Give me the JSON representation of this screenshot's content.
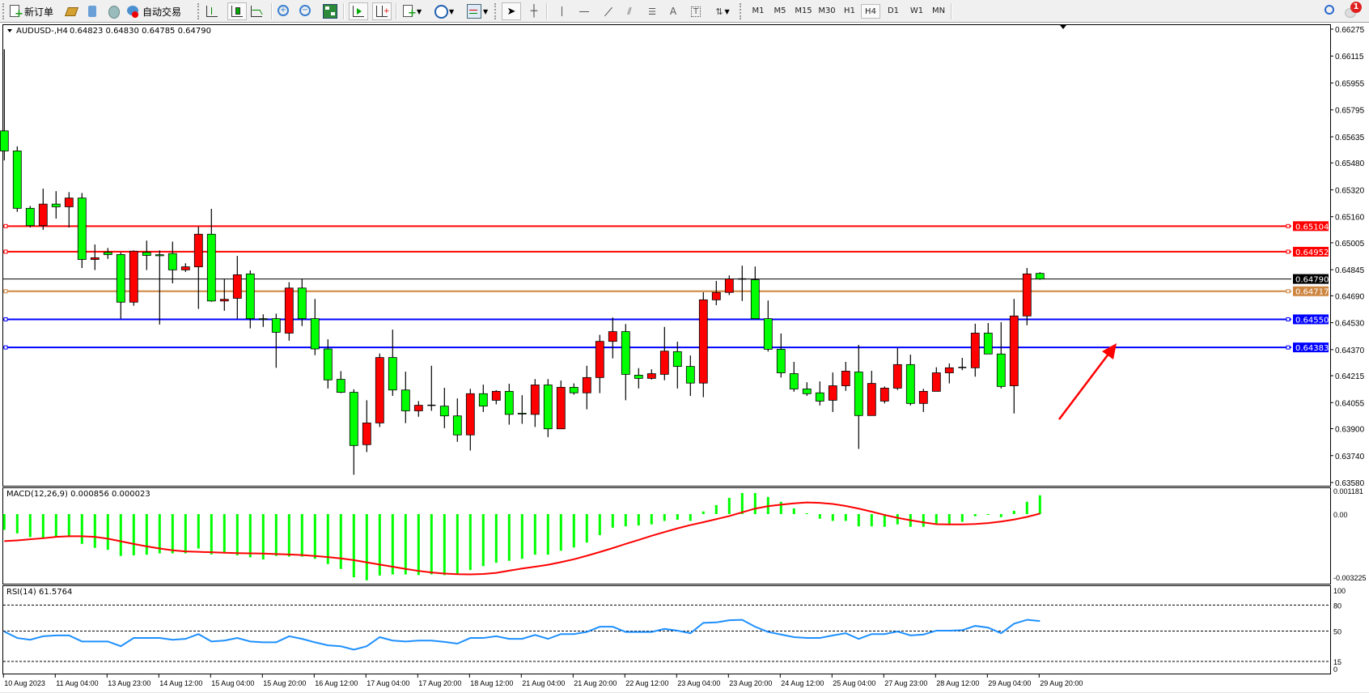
{
  "toolbar": {
    "new_order_label": "新订单",
    "auto_trading_label": "自动交易",
    "timeframes": [
      "M1",
      "M5",
      "M15",
      "M30",
      "H1",
      "H4",
      "D1",
      "W1",
      "MN"
    ],
    "active_timeframe": "H4",
    "notification_count": "1"
  },
  "chart": {
    "symbol_info": "AUDUSD-,H4",
    "ohlc_header": "0.64823 0.64830 0.64785 0.64790"
  },
  "chart_data": {
    "type": "candlestick",
    "symbol": "AUDUSD-",
    "timeframe": "H4",
    "colors": {
      "bull": "#ff0000",
      "bear": "#00ff00",
      "doji": "#000000"
    },
    "candle_fields": [
      "open",
      "high",
      "low",
      "close"
    ],
    "candles": [
      [
        0.6567,
        0.66155,
        0.65495,
        0.65551
      ],
      [
        0.65551,
        0.65578,
        0.65189,
        0.6521
      ],
      [
        0.6521,
        0.65224,
        0.65096,
        0.65107
      ],
      [
        0.65107,
        0.65327,
        0.65082,
        0.65235
      ],
      [
        0.65235,
        0.65312,
        0.65149,
        0.65219
      ],
      [
        0.65219,
        0.65306,
        0.65096,
        0.65271
      ],
      [
        0.65271,
        0.65301,
        0.64855,
        0.64906
      ],
      [
        0.64906,
        0.64995,
        0.64843,
        0.64916
      ],
      [
        0.64948,
        0.64974,
        0.64909,
        0.64935
      ],
      [
        0.64935,
        0.64948,
        0.64554,
        0.64652
      ],
      [
        0.64652,
        0.6496,
        0.64631,
        0.64955
      ],
      [
        0.64948,
        0.65018,
        0.64843,
        0.6493
      ],
      [
        0.64934,
        0.6496,
        0.64519,
        0.64928
      ],
      [
        0.64941,
        0.65012,
        0.64764,
        0.64844
      ],
      [
        0.64844,
        0.64883,
        0.64832,
        0.64862
      ],
      [
        0.64862,
        0.651,
        0.64612,
        0.65056
      ],
      [
        0.65056,
        0.65207,
        0.64654,
        0.64659
      ],
      [
        0.64659,
        0.6479,
        0.64601,
        0.64669
      ],
      [
        0.64675,
        0.64927,
        0.64554,
        0.64815
      ],
      [
        0.6482,
        0.64841,
        0.64496,
        0.64554
      ],
      [
        0.64554,
        0.6458,
        0.64505,
        0.6455
      ],
      [
        0.64554,
        0.64584,
        0.64262,
        0.64473
      ],
      [
        0.64468,
        0.64771,
        0.64423,
        0.64736
      ],
      [
        0.64736,
        0.64792,
        0.6451,
        0.64554
      ],
      [
        0.64554,
        0.64671,
        0.64337,
        0.64374
      ],
      [
        0.64374,
        0.64431,
        0.64139,
        0.6419
      ],
      [
        0.64193,
        0.64242,
        0.64111,
        0.64116
      ],
      [
        0.64116,
        0.64134,
        0.63626,
        0.638
      ],
      [
        0.63805,
        0.64069,
        0.63761,
        0.63934
      ],
      [
        0.63934,
        0.64347,
        0.6391,
        0.64323
      ],
      [
        0.64323,
        0.64489,
        0.64095,
        0.6413
      ],
      [
        0.6413,
        0.64239,
        0.63933,
        0.64006
      ],
      [
        0.64006,
        0.64064,
        0.63971,
        0.64039
      ],
      [
        0.64039,
        0.64274,
        0.64006,
        0.64036
      ],
      [
        0.64034,
        0.64143,
        0.63903,
        0.63976
      ],
      [
        0.63976,
        0.6408,
        0.63822,
        0.63863
      ],
      [
        0.63863,
        0.64137,
        0.6377,
        0.64108
      ],
      [
        0.64108,
        0.64162,
        0.63999,
        0.64034
      ],
      [
        0.64069,
        0.64129,
        0.64045,
        0.64122
      ],
      [
        0.64122,
        0.64167,
        0.63924,
        0.63985
      ],
      [
        0.63992,
        0.64099,
        0.63929,
        0.63988
      ],
      [
        0.63985,
        0.64195,
        0.6391,
        0.6416
      ],
      [
        0.6416,
        0.64195,
        0.6385,
        0.63899
      ],
      [
        0.63899,
        0.64186,
        0.63899,
        0.64146
      ],
      [
        0.64146,
        0.64169,
        0.64102,
        0.64113
      ],
      [
        0.64113,
        0.64274,
        0.64015,
        0.64204
      ],
      [
        0.64204,
        0.64458,
        0.64111,
        0.64419
      ],
      [
        0.64419,
        0.64561,
        0.64318,
        0.64477
      ],
      [
        0.64477,
        0.64522,
        0.64069,
        0.64223
      ],
      [
        0.64218,
        0.6426,
        0.64139,
        0.64199
      ],
      [
        0.64199,
        0.64253,
        0.64192,
        0.64227
      ],
      [
        0.64223,
        0.64505,
        0.64188,
        0.64361
      ],
      [
        0.64358,
        0.64417,
        0.64139,
        0.6427
      ],
      [
        0.6427,
        0.64335,
        0.64095,
        0.64171
      ],
      [
        0.64171,
        0.64711,
        0.64087,
        0.64666
      ],
      [
        0.64666,
        0.64778,
        0.64634,
        0.6471
      ],
      [
        0.6471,
        0.64811,
        0.64694,
        0.6479
      ],
      [
        0.64787,
        0.64869,
        0.64659,
        0.6479
      ],
      [
        0.64785,
        0.64864,
        0.64554,
        0.64554
      ],
      [
        0.64554,
        0.64662,
        0.64358,
        0.64372
      ],
      [
        0.64372,
        0.64466,
        0.64204,
        0.64232
      ],
      [
        0.64227,
        0.64297,
        0.6412,
        0.64136
      ],
      [
        0.64136,
        0.64176,
        0.64095,
        0.64108
      ],
      [
        0.64113,
        0.64181,
        0.64038,
        0.64064
      ],
      [
        0.64069,
        0.64234,
        0.63999,
        0.64155
      ],
      [
        0.64155,
        0.64297,
        0.64125,
        0.64242
      ],
      [
        0.64237,
        0.64398,
        0.6378,
        0.63978
      ],
      [
        0.63978,
        0.64244,
        0.63978,
        0.64169
      ],
      [
        0.64064,
        0.64151,
        0.6405,
        0.64141
      ],
      [
        0.64141,
        0.64379,
        0.6413,
        0.64281
      ],
      [
        0.64281,
        0.6434,
        0.64038,
        0.6405
      ],
      [
        0.6405,
        0.64137,
        0.63999,
        0.64122
      ],
      [
        0.64122,
        0.64265,
        0.64122,
        0.64232
      ],
      [
        0.64232,
        0.64288,
        0.64169,
        0.64262
      ],
      [
        0.64264,
        0.64321,
        0.64248,
        0.64264
      ],
      [
        0.64262,
        0.64524,
        0.64209,
        0.64468
      ],
      [
        0.64468,
        0.64528,
        0.64344,
        0.64344
      ],
      [
        0.64344,
        0.64533,
        0.64139,
        0.64151
      ],
      [
        0.64155,
        0.64671,
        0.6399,
        0.6457
      ],
      [
        0.6457,
        0.64855,
        0.64515,
        0.6482
      ],
      [
        0.64823,
        0.6483,
        0.64785,
        0.6479
      ]
    ],
    "price_range": [
      0.6358,
      0.66275
    ],
    "price_ticks": [
      "0.66275",
      "0.66115",
      "0.65955",
      "0.65795",
      "0.65635",
      "0.65480",
      "0.65320",
      "0.65160",
      "0.65005",
      "0.64845",
      "0.64690",
      "0.64530",
      "0.64370",
      "0.64215",
      "0.64055",
      "0.63900",
      "0.63740",
      "0.63580"
    ],
    "horizontal_lines": [
      {
        "price": "0.65104",
        "color": "#ff0000"
      },
      {
        "price": "0.64952",
        "color": "#ff0000"
      },
      {
        "price": "0.64717",
        "color": "#cd853f"
      },
      {
        "price": "0.64550",
        "color": "#0000ff"
      },
      {
        "price": "0.64383",
        "color": "#0000ff"
      }
    ],
    "bid_line": {
      "price": "0.64790",
      "color": "#000000"
    },
    "x_tick_labels": [
      "10 Aug 2023",
      "11 Aug 04:00",
      "13 Aug 23:00",
      "14 Aug 12:00",
      "15 Aug 04:00",
      "15 Aug 20:00",
      "16 Aug 12:00",
      "17 Aug 04:00",
      "17 Aug 20:00",
      "18 Aug 12:00",
      "21 Aug 04:00",
      "21 Aug 20:00",
      "22 Aug 12:00",
      "23 Aug 04:00",
      "23 Aug 20:00",
      "24 Aug 12:00",
      "25 Aug 04:00",
      "27 Aug 23:00",
      "28 Aug 12:00",
      "29 Aug 04:00",
      "29 Aug 20:00"
    ],
    "annotation_arrow": {
      "color": "#ff0000",
      "direction": "up-right"
    },
    "macd": {
      "header": "MACD(12,26,9) 0.000856 0.000023",
      "range": [
        -0.003225,
        0.001181
      ],
      "axis_ticks": [
        "0.001181",
        "0.00",
        "-0.003225"
      ],
      "histogram_color": "#00ff00",
      "signal_color": "#ff0000",
      "histogram": [
        -0.00072,
        -0.00088,
        -0.00105,
        -0.00111,
        -0.00105,
        -0.00105,
        -0.00136,
        -0.00154,
        -0.00163,
        -0.00191,
        -0.00188,
        -0.00185,
        -0.00179,
        -0.00179,
        -0.00179,
        -0.00157,
        -0.00184,
        -0.00173,
        -0.00188,
        -0.00197,
        -0.00207,
        -0.00191,
        -0.00194,
        -0.00194,
        -0.00204,
        -0.00228,
        -0.0025,
        -0.00288,
        -0.00302,
        -0.0028,
        -0.00275,
        -0.00275,
        -0.00278,
        -0.00275,
        -0.00278,
        -0.00273,
        -0.00255,
        -0.00237,
        -0.00222,
        -0.00213,
        -0.00204,
        -0.00185,
        -0.00185,
        -0.00167,
        -0.00152,
        -0.0013,
        -0.00096,
        -0.00062,
        -0.00056,
        -0.00052,
        -0.00047,
        -0.00031,
        -0.00026,
        -0.00031,
        0.00012,
        0.00041,
        0.00074,
        0.00096,
        0.00096,
        0.00078,
        0.00056,
        0.00026,
        4e-05,
        -0.00021,
        -0.00031,
        -0.00031,
        -0.00056,
        -0.00056,
        -0.00058,
        -0.00047,
        -0.00058,
        -0.00058,
        -0.00046,
        -0.00046,
        -0.00035,
        -0.0001,
        -2e-05,
        -0.00014,
        0.00015,
        0.00056,
        0.000856
      ],
      "signal": [
        -0.00123,
        -0.0012,
        -0.00115,
        -0.0011,
        -0.00104,
        -0.00101,
        -0.00101,
        -0.00104,
        -0.00112,
        -0.00124,
        -0.00136,
        -0.00147,
        -0.00157,
        -0.00165,
        -0.0017,
        -0.00172,
        -0.00174,
        -0.00176,
        -0.00178,
        -0.00179,
        -0.0018,
        -0.00182,
        -0.00184,
        -0.00187,
        -0.00191,
        -0.00196,
        -0.00202,
        -0.0021,
        -0.0022,
        -0.0023,
        -0.0024,
        -0.0025,
        -0.00259,
        -0.00266,
        -0.00271,
        -0.00274,
        -0.00275,
        -0.00273,
        -0.00268,
        -0.00258,
        -0.00248,
        -0.0024,
        -0.00231,
        -0.00219,
        -0.00206,
        -0.0019,
        -0.00173,
        -0.00155,
        -0.00136,
        -0.00118,
        -0.00099,
        -0.00082,
        -0.00065,
        -0.0005,
        -0.00037,
        -0.00023,
        -9e-05,
        8e-05,
        0.00025,
        0.00036,
        0.00043,
        0.00049,
        0.00053,
        0.00051,
        0.00046,
        0.00037,
        0.00025,
        0.00011,
        -4e-05,
        -0.00017,
        -0.00028,
        -0.00038,
        -0.00046,
        -0.00047,
        -0.00047,
        -0.00045,
        -0.00041,
        -0.00034,
        -0.00025,
        -0.00013,
        2.3e-05
      ]
    },
    "rsi": {
      "header": "RSI(14) 61.5764",
      "range": [
        0,
        100
      ],
      "levels": [
        80,
        50,
        15
      ],
      "axis_ticks": [
        "100",
        "80",
        "50",
        "15",
        "0"
      ],
      "color": "#1e90ff",
      "values": [
        49.4,
        42,
        40,
        44,
        45,
        45,
        38,
        38,
        38,
        32.5,
        42,
        42,
        42,
        40,
        41,
        46.5,
        38,
        39,
        42,
        38,
        37,
        37,
        44,
        41,
        37,
        33.5,
        32.5,
        28.5,
        32.5,
        43,
        39,
        38,
        39,
        39,
        37.5,
        35.5,
        42,
        42,
        44,
        41,
        41,
        45.5,
        41,
        46.5,
        46.5,
        49,
        55,
        55,
        49,
        49,
        49,
        52.5,
        50.5,
        47.5,
        59.5,
        60,
        62.5,
        63,
        55,
        49,
        46,
        43,
        42,
        42,
        45,
        47.5,
        41,
        46.5,
        46.5,
        49.5,
        45,
        46,
        50.5,
        50.5,
        51,
        56,
        54,
        47.5,
        58.5,
        63,
        61.5764
      ]
    }
  }
}
